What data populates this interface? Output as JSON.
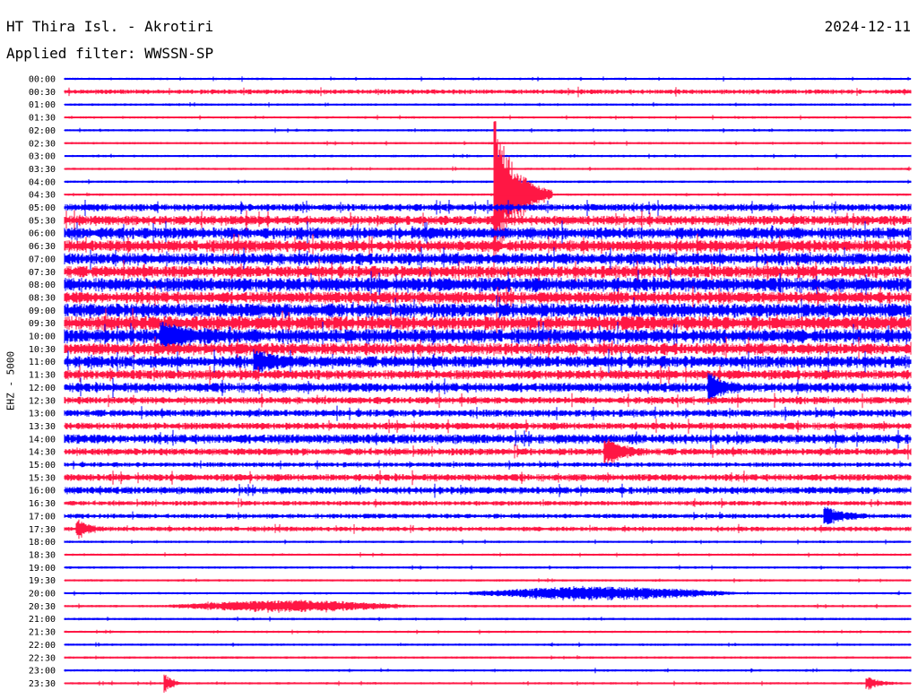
{
  "header": {
    "station": "HT Thira Isl. - Akrotiri",
    "date": "2024-12-11",
    "filter_label": "Applied filter: WWSSN-SP",
    "channel_label": "EHZ - 5000"
  },
  "colors": {
    "trace_a": "#0000ff",
    "trace_b": "#ff1744"
  },
  "chart_data": {
    "type": "helicorder",
    "row_labels": [
      "00:00",
      "00:30",
      "01:00",
      "01:30",
      "02:00",
      "02:30",
      "03:00",
      "03:30",
      "04:00",
      "04:30",
      "05:00",
      "05:30",
      "06:00",
      "06:30",
      "07:00",
      "07:30",
      "08:00",
      "08:30",
      "09:00",
      "09:30",
      "10:00",
      "10:30",
      "11:00",
      "11:30",
      "12:00",
      "12:30",
      "13:00",
      "13:30",
      "14:00",
      "14:30",
      "15:00",
      "15:30",
      "16:00",
      "16:30",
      "17:00",
      "17:30",
      "18:00",
      "18:30",
      "19:00",
      "19:30",
      "20:00",
      "20:30",
      "21:00",
      "21:30",
      "22:00",
      "22:30",
      "23:00",
      "23:30"
    ],
    "row_minutes": 30,
    "row_noise": [
      1,
      2,
      1,
      1,
      1,
      1,
      1,
      1,
      1,
      1,
      3,
      4,
      5,
      5,
      5,
      5,
      6,
      5,
      6,
      6,
      6,
      5,
      5,
      4,
      4,
      3,
      3,
      3,
      4,
      3,
      2,
      3,
      3,
      2,
      2,
      2,
      1,
      1,
      1,
      1,
      1,
      1,
      1,
      1,
      1,
      1,
      1,
      1
    ],
    "events": [
      {
        "row": 9,
        "minute": 15.3,
        "amplitude": 75,
        "duration_min": 2.0
      },
      {
        "row": 20,
        "minute": 3.5,
        "amplitude": 11,
        "duration_min": 2.0
      },
      {
        "row": 22,
        "minute": 6.8,
        "amplitude": 9,
        "duration_min": 1.5
      },
      {
        "row": 24,
        "minute": 22.9,
        "amplitude": 14,
        "duration_min": 1.0
      },
      {
        "row": 29,
        "minute": 19.2,
        "amplitude": 13,
        "duration_min": 1.5
      },
      {
        "row": 34,
        "minute": 27.0,
        "amplitude": 9,
        "duration_min": 1.5
      },
      {
        "row": 35,
        "minute": 0.5,
        "amplitude": 8,
        "duration_min": 1.0
      },
      {
        "row": 40,
        "minute": 14.0,
        "amplitude": 6,
        "duration_min": 10.0
      },
      {
        "row": 41,
        "minute": 3.5,
        "amplitude": 5,
        "duration_min": 9.0
      },
      {
        "row": 47,
        "minute": 3.6,
        "amplitude": 9,
        "duration_min": 0.6
      },
      {
        "row": 47,
        "minute": 28.5,
        "amplitude": 7,
        "duration_min": 1.0
      }
    ]
  }
}
